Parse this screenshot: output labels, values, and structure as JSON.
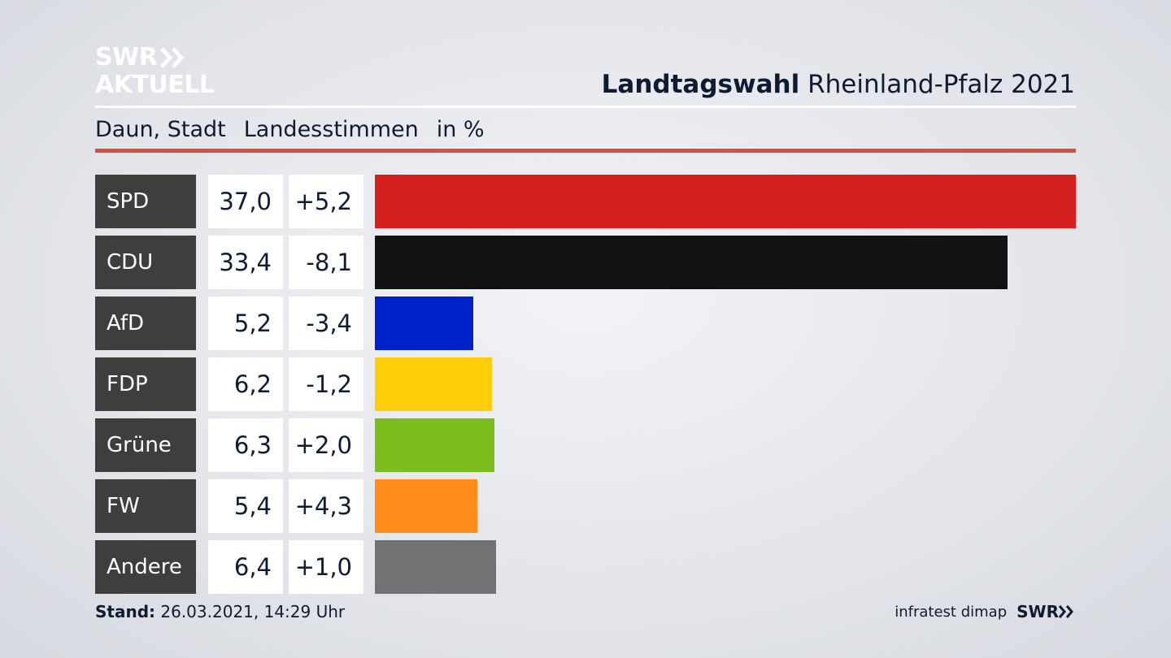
{
  "brand": {
    "logo_line1": "SWR",
    "logo_line2": "AKTUELL",
    "footer_logo": "SWR"
  },
  "header": {
    "title_bold": "Landtagswahl",
    "title_rest": "Rheinland-Pfalz 2021"
  },
  "subheader": {
    "region": "Daun, Stadt",
    "vote_type": "Landesstimmen",
    "unit": "in %"
  },
  "colors": {
    "accent_red": "#d5513d"
  },
  "chart_data": {
    "type": "bar",
    "orientation": "horizontal",
    "title": "Landtagswahl Rheinland-Pfalz 2021",
    "subtitle": "Daun, Stadt Landesstimmen in %",
    "categories": [
      "SPD",
      "CDU",
      "AfD",
      "FDP",
      "Grüne",
      "FW",
      "Andere"
    ],
    "values": [
      37.0,
      33.4,
      5.2,
      6.2,
      6.3,
      5.4,
      6.4
    ],
    "values_label": [
      "37,0",
      "33,4",
      "5,2",
      "6,2",
      "6,3",
      "5,4",
      "6,4"
    ],
    "diff": [
      5.2,
      -8.1,
      -3.4,
      -1.2,
      2.0,
      4.3,
      1.0
    ],
    "diff_label": [
      "+5,2",
      "-8,1",
      "-3,4",
      "-1,2",
      "+2,0",
      "+4,3",
      "+1,0"
    ],
    "colors": [
      "#d61f1f",
      "#121212",
      "#0021c8",
      "#fdcd08",
      "#7abd1d",
      "#fd8d18",
      "#717273"
    ],
    "xlim": [
      0,
      37.0
    ],
    "grid": false,
    "legend": "none"
  },
  "footer": {
    "stand_label": "Stand:",
    "stand_value": "26.03.2021, 14:29 Uhr",
    "source": "infratest dimap"
  }
}
